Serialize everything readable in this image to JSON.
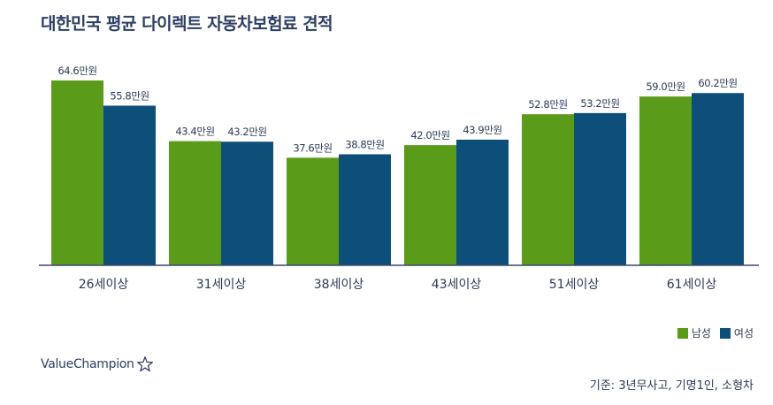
{
  "title": "대한민국 평균 다이렉트 자동차보험료 견적",
  "logo_text": "ValueChampion",
  "footnote": "기준: 3년무사고, 기명1인, 소형차",
  "colors": {
    "male": "#5a9c1a",
    "female": "#0e4f7a",
    "axis": "#3a4a6b",
    "text": "#2b3a55"
  },
  "chart_data": {
    "type": "bar",
    "title": "대한민국 평균 다이렉트 자동차보험료 견적",
    "categories": [
      "26세이상",
      "31세이상",
      "38세이상",
      "43세이상",
      "51세이상",
      "61세이상"
    ],
    "series": [
      {
        "name": "남성",
        "values": [
          64.6,
          43.4,
          37.6,
          42.0,
          52.8,
          59.0
        ],
        "labels": [
          "64.6만원",
          "43.4만원",
          "37.6만원",
          "42.0만원",
          "52.8만원",
          "59.0만원"
        ]
      },
      {
        "name": "여성",
        "values": [
          55.8,
          43.2,
          38.8,
          43.9,
          53.2,
          60.2
        ],
        "labels": [
          "55.8만원",
          "43.2만원",
          "38.8만원",
          "43.9만원",
          "53.2만원",
          "60.2만원"
        ]
      }
    ],
    "unit": "만원",
    "ylim": [
      0,
      64.6
    ],
    "grid": false,
    "legend": "bottom-right"
  }
}
